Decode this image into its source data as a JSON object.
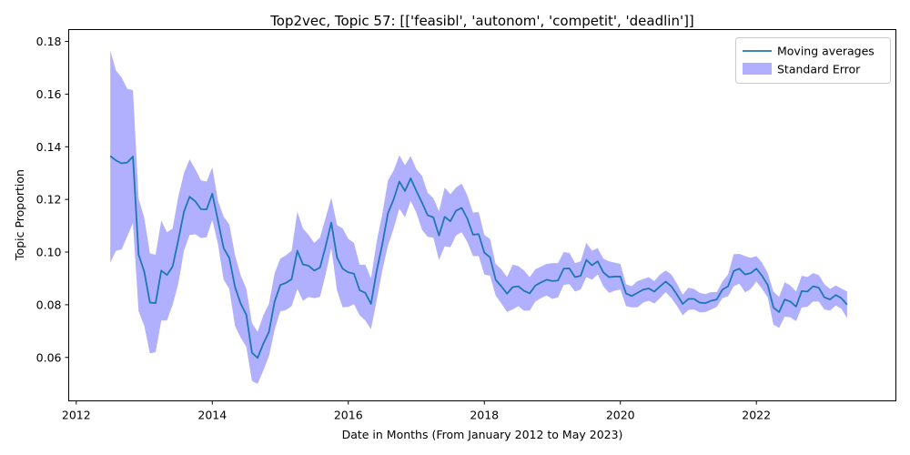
{
  "chart_data": {
    "type": "line",
    "title": "Top2vec, Topic 57: [['feasibl', 'autonom', 'competit', 'deadlin']]",
    "xlabel": "Date in Months (From January 2012 to May 2023)",
    "ylabel": "Topic Proportion",
    "xlim": [
      "2011-11-21",
      "2024-01-20"
    ],
    "ylim": [
      0.0435,
      0.1845
    ],
    "x_ticks": [
      "2012",
      "2014",
      "2016",
      "2018",
      "2020",
      "2022"
    ],
    "y_ticks": [
      "0.06",
      "0.08",
      "0.10",
      "0.12",
      "0.14",
      "0.16",
      "0.18"
    ],
    "grid": false,
    "legend_position": "upper right",
    "legend": [
      {
        "label": "Moving averages",
        "kind": "line",
        "color": "#1f77b4"
      },
      {
        "label": "Standard Error",
        "kind": "patch",
        "color": "#7b7bff"
      }
    ],
    "series": [
      {
        "name": "Moving averages",
        "color": "#1f77b4",
        "x": [
          "2012-07",
          "2012-08",
          "2012-09",
          "2012-10",
          "2012-11",
          "2012-12",
          "2013-01",
          "2013-02",
          "2013-03",
          "2013-04",
          "2013-05",
          "2013-06",
          "2013-07",
          "2013-08",
          "2013-09",
          "2013-10",
          "2013-11",
          "2013-12",
          "2014-01",
          "2014-02",
          "2014-03",
          "2014-04",
          "2014-05",
          "2014-06",
          "2014-07",
          "2014-08",
          "2014-09",
          "2014-10",
          "2014-11",
          "2014-12",
          "2015-01",
          "2015-02",
          "2015-03",
          "2015-04",
          "2015-05",
          "2015-06",
          "2015-07",
          "2015-08",
          "2015-09",
          "2015-10",
          "2015-11",
          "2015-12",
          "2016-01",
          "2016-02",
          "2016-03",
          "2016-04",
          "2016-05",
          "2016-06",
          "2016-07",
          "2016-08",
          "2016-09",
          "2016-10",
          "2016-11",
          "2016-12",
          "2017-01",
          "2017-02",
          "2017-03",
          "2017-04",
          "2017-05",
          "2017-06",
          "2017-07",
          "2017-08",
          "2017-09",
          "2017-10",
          "2017-11",
          "2017-12",
          "2018-01",
          "2018-02",
          "2018-03",
          "2018-04",
          "2018-05",
          "2018-06",
          "2018-07",
          "2018-08",
          "2018-09",
          "2018-10",
          "2018-11",
          "2018-12",
          "2019-01",
          "2019-02",
          "2019-03",
          "2019-04",
          "2019-05",
          "2019-06",
          "2019-07",
          "2019-08",
          "2019-09",
          "2019-10",
          "2019-11",
          "2019-12",
          "2020-01",
          "2020-02",
          "2020-03",
          "2020-04",
          "2020-05",
          "2020-06",
          "2020-07",
          "2020-08",
          "2020-09",
          "2020-10",
          "2020-11",
          "2020-12",
          "2021-01",
          "2021-02",
          "2021-03",
          "2021-04",
          "2021-05",
          "2021-06",
          "2021-07",
          "2021-08",
          "2021-09",
          "2021-10",
          "2021-11",
          "2021-12",
          "2022-01",
          "2022-02",
          "2022-03",
          "2022-04",
          "2022-05",
          "2022-06",
          "2022-07",
          "2022-08",
          "2022-09",
          "2022-10",
          "2022-11",
          "2022-12",
          "2023-01",
          "2023-02",
          "2023-03",
          "2023-04",
          "2023-05"
        ],
        "y": [
          0.1365,
          0.1348,
          0.1337,
          0.134,
          0.1363,
          0.099,
          0.0925,
          0.0808,
          0.0806,
          0.093,
          0.0913,
          0.0945,
          0.1045,
          0.1153,
          0.121,
          0.1193,
          0.1163,
          0.1162,
          0.1222,
          0.112,
          0.1015,
          0.0978,
          0.0868,
          0.0805,
          0.0762,
          0.0618,
          0.0598,
          0.0652,
          0.0697,
          0.0812,
          0.0875,
          0.0883,
          0.0897,
          0.1005,
          0.0953,
          0.0948,
          0.093,
          0.0941,
          0.1022,
          0.1112,
          0.098,
          0.0937,
          0.0923,
          0.0918,
          0.0855,
          0.0845,
          0.0803,
          0.0928,
          0.103,
          0.1148,
          0.12,
          0.1268,
          0.1232,
          0.128,
          0.1233,
          0.1188,
          0.114,
          0.1132,
          0.1063,
          0.1134,
          0.1117,
          0.1157,
          0.1168,
          0.1127,
          0.1066,
          0.1068,
          0.0998,
          0.098,
          0.0895,
          0.087,
          0.0842,
          0.0867,
          0.087,
          0.0853,
          0.0843,
          0.0873,
          0.0885,
          0.0895,
          0.089,
          0.0892,
          0.0937,
          0.0938,
          0.0905,
          0.091,
          0.097,
          0.095,
          0.0965,
          0.0923,
          0.0905,
          0.0907,
          0.0907,
          0.0843,
          0.0833,
          0.0845,
          0.0857,
          0.0862,
          0.085,
          0.087,
          0.0888,
          0.087,
          0.0838,
          0.0803,
          0.0822,
          0.0822,
          0.0808,
          0.0806,
          0.0815,
          0.082,
          0.0857,
          0.087,
          0.0928,
          0.0937,
          0.0915,
          0.092,
          0.0937,
          0.091,
          0.0875,
          0.079,
          0.0772,
          0.082,
          0.0812,
          0.0793,
          0.0852,
          0.085,
          0.087,
          0.0865,
          0.0828,
          0.082,
          0.0837,
          0.0825,
          0.08
        ]
      },
      {
        "name": "Standard Error",
        "color": "#7b7bff",
        "upper": [
          0.1765,
          0.169,
          0.1663,
          0.162,
          0.1615,
          0.1203,
          0.113,
          0.0995,
          0.099,
          0.112,
          0.1075,
          0.109,
          0.121,
          0.13,
          0.1352,
          0.1315,
          0.1272,
          0.1268,
          0.1322,
          0.1195,
          0.1135,
          0.1105,
          0.099,
          0.0912,
          0.0862,
          0.073,
          0.0697,
          0.076,
          0.0803,
          0.092,
          0.0975,
          0.0988,
          0.1005,
          0.1153,
          0.109,
          0.1065,
          0.1035,
          0.1055,
          0.113,
          0.1207,
          0.1103,
          0.109,
          0.105,
          0.1035,
          0.0952,
          0.0952,
          0.09,
          0.104,
          0.1145,
          0.1272,
          0.131,
          0.1367,
          0.133,
          0.1365,
          0.1315,
          0.129,
          0.1225,
          0.1205,
          0.1155,
          0.1245,
          0.122,
          0.1245,
          0.126,
          0.1215,
          0.115,
          0.1152,
          0.1065,
          0.105,
          0.0955,
          0.0935,
          0.0905,
          0.0952,
          0.0947,
          0.093,
          0.0905,
          0.0935,
          0.0945,
          0.0955,
          0.0958,
          0.0958,
          0.1,
          0.0997,
          0.0958,
          0.0965,
          0.1035,
          0.1005,
          0.1015,
          0.0975,
          0.0965,
          0.096,
          0.0955,
          0.0878,
          0.087,
          0.089,
          0.0897,
          0.0905,
          0.089,
          0.0915,
          0.093,
          0.0915,
          0.088,
          0.0838,
          0.0865,
          0.086,
          0.0845,
          0.084,
          0.0848,
          0.0848,
          0.0888,
          0.0915,
          0.0992,
          0.0993,
          0.0985,
          0.0978,
          0.0985,
          0.096,
          0.092,
          0.085,
          0.083,
          0.0885,
          0.0873,
          0.085,
          0.091,
          0.0905,
          0.092,
          0.0913,
          0.0878,
          0.086,
          0.0873,
          0.0862,
          0.085
        ],
        "lower": [
          0.096,
          0.1005,
          0.101,
          0.106,
          0.111,
          0.0775,
          0.072,
          0.0615,
          0.062,
          0.074,
          0.074,
          0.08,
          0.088,
          0.1005,
          0.1065,
          0.1068,
          0.1053,
          0.1056,
          0.1122,
          0.103,
          0.0895,
          0.086,
          0.072,
          0.0675,
          0.064,
          0.051,
          0.05,
          0.055,
          0.0605,
          0.0705,
          0.0775,
          0.078,
          0.0795,
          0.086,
          0.0815,
          0.083,
          0.0825,
          0.083,
          0.0915,
          0.1015,
          0.0855,
          0.079,
          0.0792,
          0.0802,
          0.076,
          0.074,
          0.0707,
          0.0815,
          0.093,
          0.1025,
          0.109,
          0.1165,
          0.1132,
          0.1195,
          0.115,
          0.1085,
          0.1058,
          0.1055,
          0.097,
          0.1022,
          0.1018,
          0.1063,
          0.1075,
          0.1038,
          0.0985,
          0.0985,
          0.0915,
          0.091,
          0.0835,
          0.0805,
          0.0773,
          0.0782,
          0.0795,
          0.0777,
          0.0778,
          0.0812,
          0.0825,
          0.0835,
          0.0822,
          0.0828,
          0.0875,
          0.0878,
          0.085,
          0.0858,
          0.0905,
          0.0895,
          0.0915,
          0.087,
          0.0845,
          0.0853,
          0.0858,
          0.0795,
          0.079,
          0.079,
          0.0808,
          0.0815,
          0.0805,
          0.0825,
          0.0848,
          0.0825,
          0.0795,
          0.076,
          0.078,
          0.0782,
          0.0771,
          0.0772,
          0.0782,
          0.0792,
          0.0825,
          0.0832,
          0.087,
          0.088,
          0.0847,
          0.086,
          0.0888,
          0.086,
          0.0828,
          0.0725,
          0.0712,
          0.0755,
          0.0752,
          0.0738,
          0.079,
          0.0792,
          0.0812,
          0.0812,
          0.0782,
          0.0778,
          0.0797,
          0.0785,
          0.0748
        ]
      }
    ]
  }
}
